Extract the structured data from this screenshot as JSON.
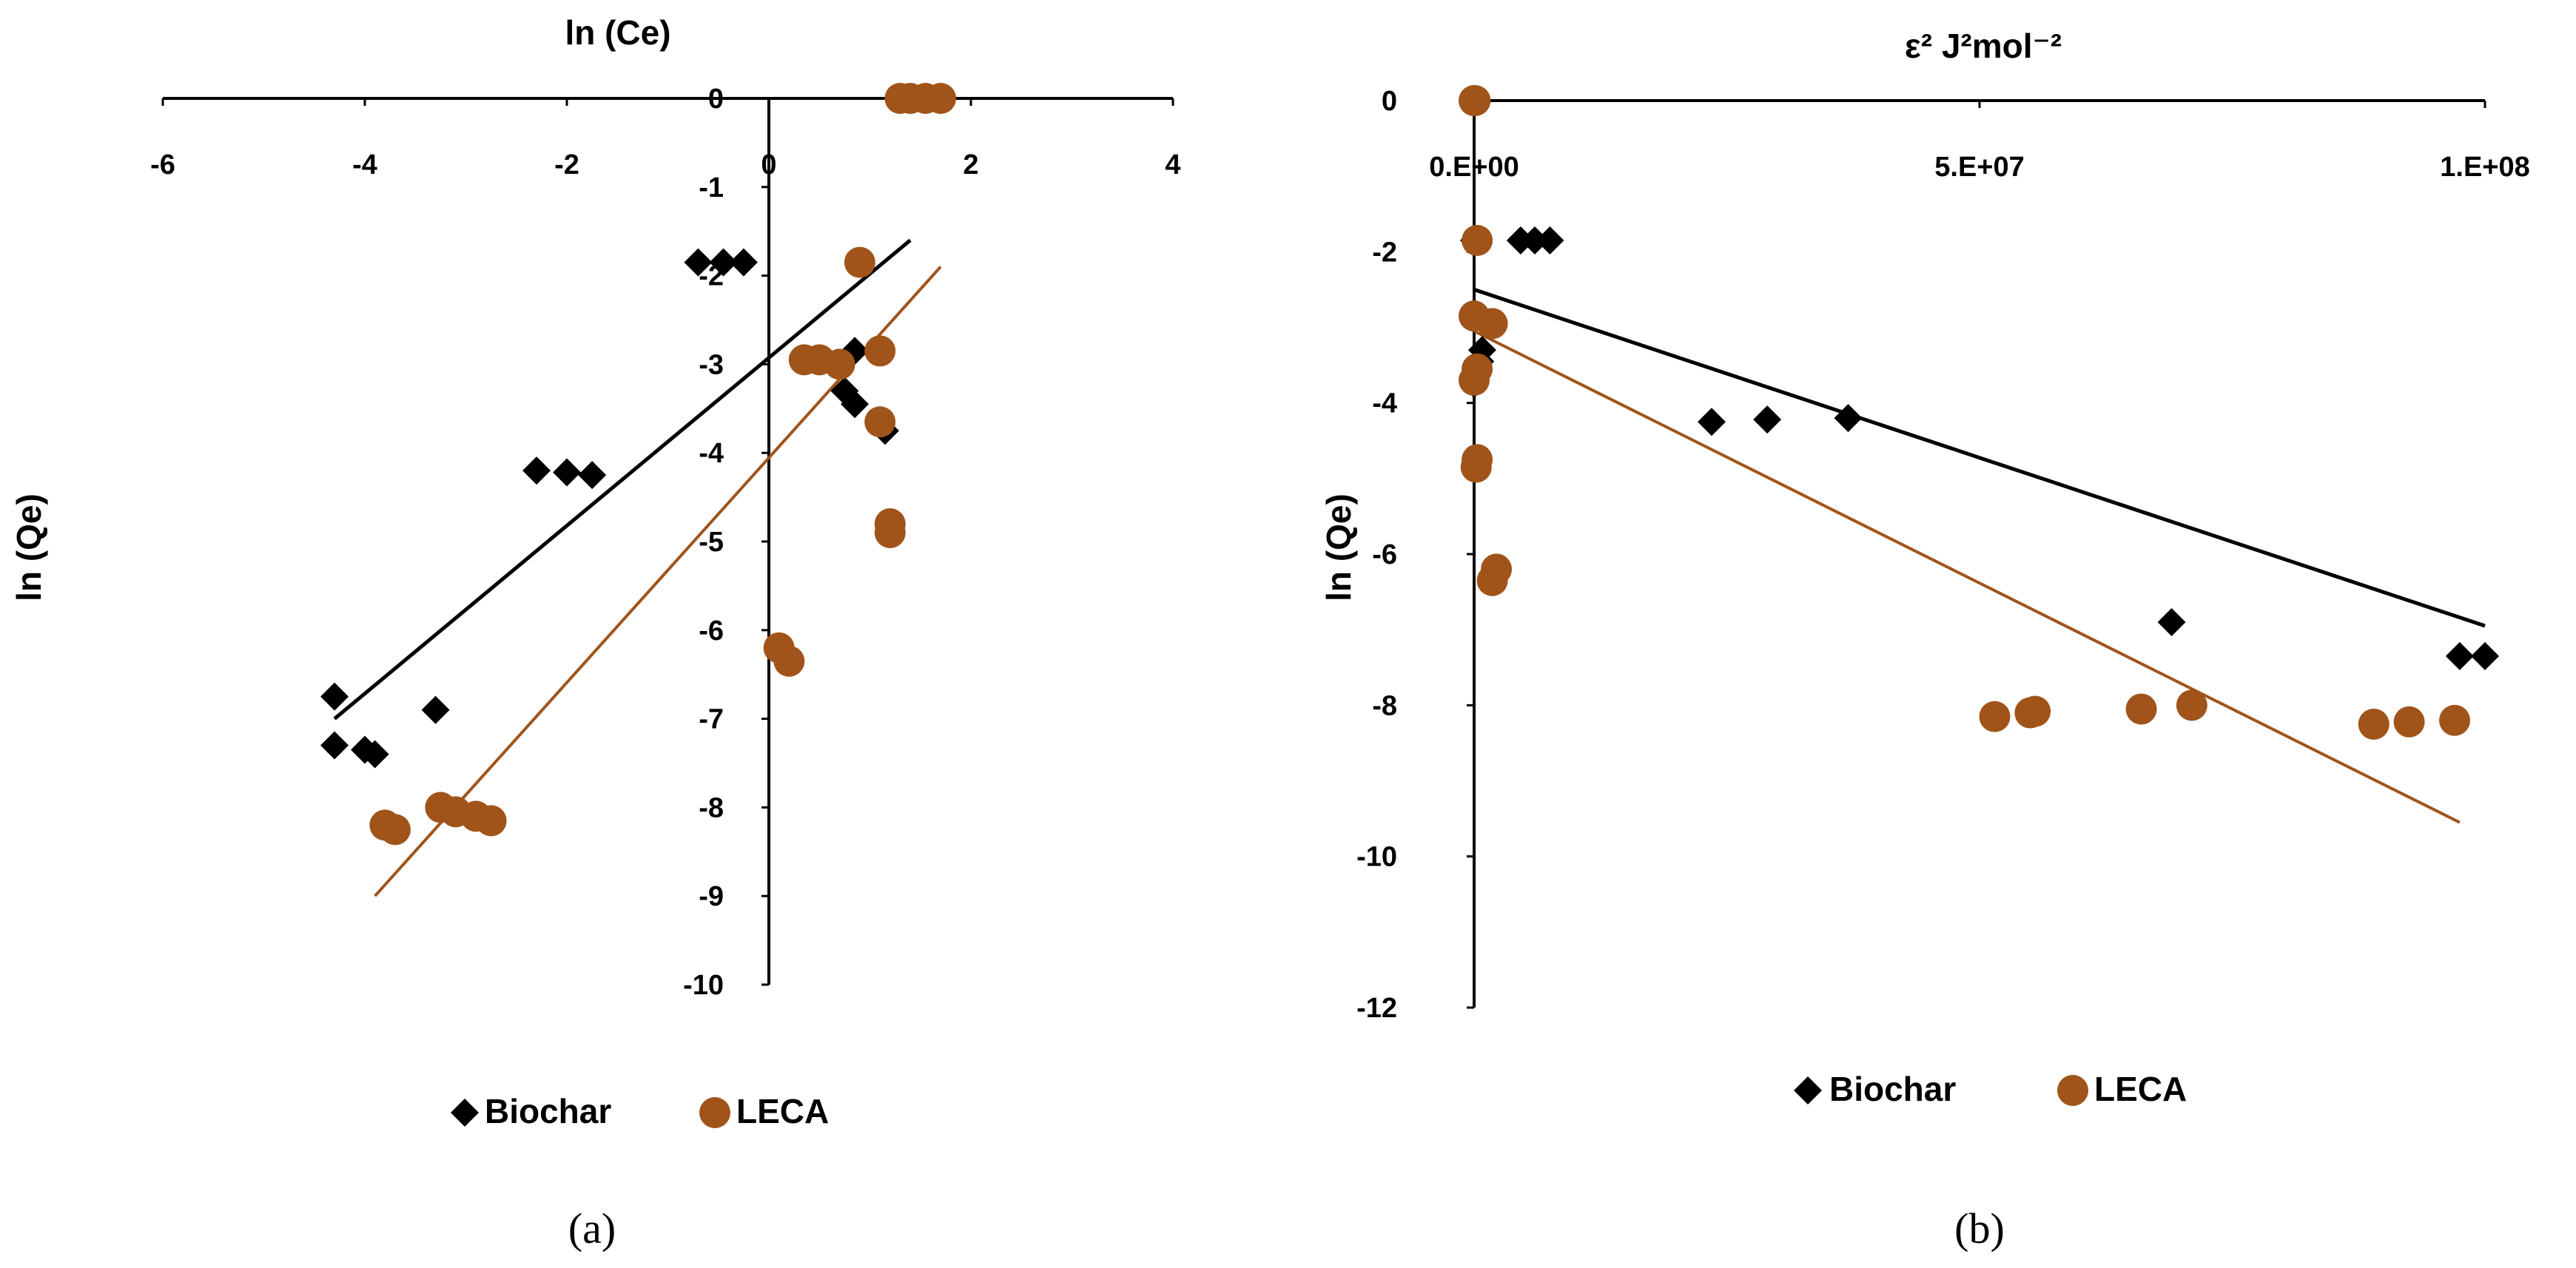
{
  "colors": {
    "biochar": "#000000",
    "leca": "#a0541a",
    "axis": "#000000"
  },
  "chart_data": [
    {
      "type": "scatter",
      "panel": "(a)",
      "title": "",
      "xlabel": "ln (Ce)",
      "ylabel": "ln (Qe)",
      "xlim": [
        -6,
        4
      ],
      "ylim": [
        -10,
        0
      ],
      "xticks": [
        {
          "v": -6,
          "label": "-6"
        },
        {
          "v": -4,
          "label": "-4"
        },
        {
          "v": -2,
          "label": "-2"
        },
        {
          "v": 0,
          "label": "0"
        },
        {
          "v": 2,
          "label": "2"
        },
        {
          "v": 4,
          "label": "4"
        }
      ],
      "yticks": [
        {
          "v": 0,
          "label": "0"
        },
        {
          "v": -1,
          "label": "-1"
        },
        {
          "v": -2,
          "label": "-2"
        },
        {
          "v": -3,
          "label": "-3"
        },
        {
          "v": -4,
          "label": "-4"
        },
        {
          "v": -5,
          "label": "-5"
        },
        {
          "v": -6,
          "label": "-6"
        },
        {
          "v": -7,
          "label": "-7"
        },
        {
          "v": -8,
          "label": "-8"
        },
        {
          "v": -9,
          "label": "-9"
        },
        {
          "v": -10,
          "label": "-10"
        }
      ],
      "legend": "bottom",
      "series": [
        {
          "name": "Biochar",
          "marker": "diamond",
          "color_key": "biochar",
          "points": [
            [
              -0.7,
              -1.85
            ],
            [
              -0.45,
              -1.85
            ],
            [
              -0.25,
              -1.85
            ],
            [
              -2.3,
              -4.2
            ],
            [
              -2.0,
              -4.22
            ],
            [
              -1.75,
              -4.25
            ],
            [
              -4.3,
              -6.75
            ],
            [
              -3.3,
              -6.9
            ],
            [
              -4.3,
              -7.3
            ],
            [
              -4.0,
              -7.35
            ],
            [
              -3.9,
              -7.4
            ],
            [
              0.85,
              -2.85
            ],
            [
              0.75,
              -3.3
            ],
            [
              0.85,
              -3.45
            ],
            [
              1.15,
              -3.75
            ]
          ],
          "trendline": [
            [
              -4.3,
              -7.0
            ],
            [
              1.4,
              -1.6
            ]
          ]
        },
        {
          "name": "LECA",
          "marker": "circle",
          "color_key": "leca",
          "points": [
            [
              1.3,
              0.0
            ],
            [
              1.4,
              0.0
            ],
            [
              1.55,
              0.0
            ],
            [
              1.7,
              0.0
            ],
            [
              0.9,
              -1.85
            ],
            [
              0.35,
              -2.95
            ],
            [
              0.5,
              -2.95
            ],
            [
              0.7,
              -3.0
            ],
            [
              1.1,
              -2.85
            ],
            [
              1.1,
              -3.65
            ],
            [
              1.2,
              -4.8
            ],
            [
              1.2,
              -4.9
            ],
            [
              0.1,
              -6.2
            ],
            [
              0.2,
              -6.35
            ],
            [
              -3.8,
              -8.2
            ],
            [
              -3.7,
              -8.25
            ],
            [
              -3.25,
              -8.0
            ],
            [
              -3.1,
              -8.05
            ],
            [
              -2.9,
              -8.1
            ],
            [
              -2.75,
              -8.15
            ]
          ],
          "trendline": [
            [
              -3.9,
              -9.0
            ],
            [
              1.7,
              -1.9
            ]
          ]
        }
      ]
    },
    {
      "type": "scatter",
      "panel": "(b)",
      "title": "",
      "xlabel": "ε² J²mol⁻²",
      "ylabel": "ln (Qe)",
      "xlim": [
        0,
        100000000
      ],
      "ylim": [
        -12,
        0
      ],
      "xticks": [
        {
          "v": 0,
          "label": "0.E+00"
        },
        {
          "v": 50000000,
          "label": "5.E+07"
        },
        {
          "v": 100000000,
          "label": "1.E+08"
        }
      ],
      "yticks": [
        {
          "v": 0,
          "label": "0"
        },
        {
          "v": -2,
          "label": "-2"
        },
        {
          "v": -4,
          "label": "-4"
        },
        {
          "v": -6,
          "label": "-6"
        },
        {
          "v": -8,
          "label": "-8"
        },
        {
          "v": -10,
          "label": "-10"
        },
        {
          "v": -12,
          "label": "-12"
        }
      ],
      "legend": "bottom",
      "series": [
        {
          "name": "Biochar",
          "marker": "diamond",
          "color_key": "biochar",
          "points": [
            [
              0,
              -1.85
            ],
            [
              4600000,
              -1.85
            ],
            [
              6000000,
              -1.85
            ],
            [
              7500000,
              -1.85
            ],
            [
              800000,
              -3.3
            ],
            [
              600000,
              -3.45
            ],
            [
              0,
              -3.75
            ],
            [
              23500000,
              -4.25
            ],
            [
              29000000,
              -4.22
            ],
            [
              37000000,
              -4.2
            ],
            [
              69000000,
              -6.9
            ],
            [
              97500000,
              -7.35
            ],
            [
              100000000,
              -7.35
            ]
          ],
          "trendline": [
            [
              0,
              -2.5
            ],
            [
              100000000,
              -6.95
            ]
          ]
        },
        {
          "name": "LECA",
          "marker": "circle",
          "color_key": "leca",
          "points": [
            [
              0,
              0.0
            ],
            [
              100000,
              0.0
            ],
            [
              300000,
              -1.85
            ],
            [
              0,
              -2.85
            ],
            [
              1800000,
              -2.95
            ],
            [
              300000,
              -3.55
            ],
            [
              0,
              -3.7
            ],
            [
              300000,
              -4.75
            ],
            [
              200000,
              -4.85
            ],
            [
              2200000,
              -6.2
            ],
            [
              1800000,
              -6.35
            ],
            [
              51500000,
              -8.15
            ],
            [
              55000000,
              -8.1
            ],
            [
              55500000,
              -8.08
            ],
            [
              66000000,
              -8.05
            ],
            [
              71000000,
              -8.0
            ],
            [
              89000000,
              -8.25
            ],
            [
              92500000,
              -8.22
            ],
            [
              97000000,
              -8.2
            ]
          ],
          "trendline": [
            [
              0,
              -3.05
            ],
            [
              97500000,
              -9.55
            ]
          ]
        }
      ]
    }
  ]
}
